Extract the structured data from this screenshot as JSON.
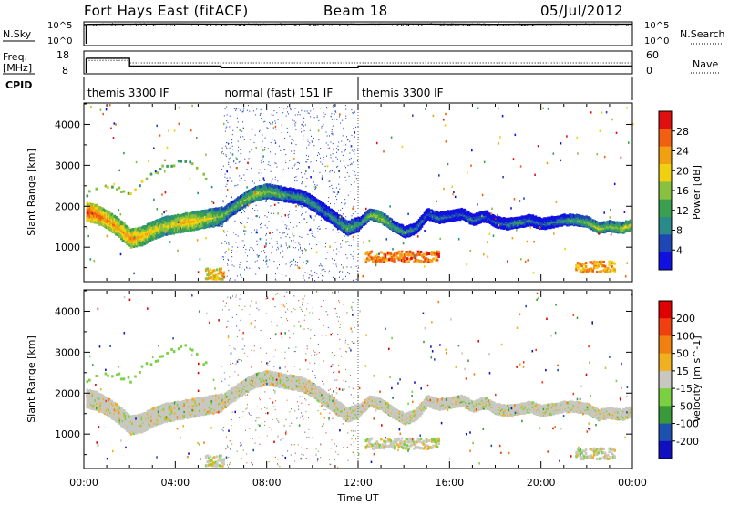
{
  "header": {
    "station": "Fort Hays East (fitACF)",
    "beam": "Beam 18",
    "date": "05/Jul/2012"
  },
  "colors": {
    "power_scale": [
      "#1010e0",
      "#1e46b4",
      "#2a8a8a",
      "#3aa050",
      "#8ac040",
      "#f0d010",
      "#f0a010",
      "#f06010",
      "#e01010"
    ],
    "velocity_scale": [
      "#1010c0",
      "#1e50b0",
      "#3a9a3a",
      "#7ad040",
      "#c8c8c0",
      "#f0b020",
      "#f08010",
      "#f04010",
      "#e00000"
    ]
  },
  "chart_data": [
    {
      "type": "line",
      "panel": "noise",
      "ylabel": "N.Sky",
      "ylabel_right": "N.Search",
      "y_ticks": [
        "10^5",
        "10^0"
      ],
      "y_ticks_right": [
        "10^5",
        "10^0"
      ],
      "xlim": [
        0,
        24
      ],
      "series": [
        {
          "style": "solid",
          "x": [
            0.0,
            0.1,
            0.2,
            2.0,
            4.0,
            6.0,
            8.0,
            10.0,
            12.0,
            14.0,
            16.0,
            18.0,
            20.0,
            22.0,
            23.9,
            24.0
          ],
          "values": [
            4.8,
            4.8,
            4.85,
            4.9,
            4.95,
            4.9,
            4.92,
            4.95,
            4.9,
            4.95,
            4.9,
            4.85,
            4.88,
            4.9,
            4.9,
            4.9
          ]
        }
      ]
    },
    {
      "type": "line",
      "panel": "frequency",
      "ylabel": "Freq. [MHz]",
      "ylabel_right": "Nave",
      "y_ticks": [
        "18",
        "8"
      ],
      "y_ticks_right": [
        "60",
        "0"
      ],
      "xlim": [
        0,
        24
      ],
      "ylim": [
        8,
        18
      ],
      "series": [
        {
          "name": "Freq.",
          "style": "solid",
          "x": [
            0.1,
            2.0,
            2.0,
            6.0,
            6.0,
            12.0,
            12.0,
            24.0
          ],
          "values": [
            15.0,
            15.0,
            11.3,
            11.3,
            10.5,
            10.5,
            11.3,
            11.3
          ]
        },
        {
          "name": "Nave",
          "style": "dotted",
          "x": [
            0.1,
            2.0,
            2.0,
            24.0
          ],
          "values": [
            14.0,
            14.0,
            12.8,
            12.8
          ]
        }
      ]
    },
    {
      "type": "table",
      "panel": "cpid",
      "label": "CPID",
      "segments": [
        {
          "start": 0,
          "end": 6,
          "label": "themis 3300 IF"
        },
        {
          "start": 6,
          "end": 12,
          "label": "normal (fast) 151 IF"
        },
        {
          "start": 12,
          "end": 24,
          "label": "themis 3300 IF"
        }
      ]
    },
    {
      "type": "heatmap",
      "panel": "power",
      "ylabel": "Slant Range [km]",
      "colorbar_label": "Power [dB]",
      "colorbar_ticks": [
        "28",
        "24",
        "20",
        "16",
        "12",
        "8",
        "4"
      ],
      "y_ticks": [
        "4000",
        "3000",
        "2000",
        "1000"
      ],
      "ylim": [
        180,
        4500
      ],
      "xlim": [
        0,
        24
      ],
      "x_ticks": [
        "00:00",
        "04:00",
        "08:00",
        "12:00",
        "16:00",
        "20:00",
        "00:00"
      ],
      "x_tick_values": [
        0,
        4,
        8,
        12,
        16,
        20,
        24
      ],
      "trace_x": [
        0,
        0.5,
        1,
        1.5,
        2,
        2.5,
        3,
        3.5,
        4,
        4.5,
        5,
        5.5,
        6,
        6.5,
        7,
        7.5,
        8,
        8.5,
        9,
        9.5,
        10,
        10.5,
        11,
        11.5,
        12,
        12.5,
        13,
        13.5,
        14,
        14.5,
        15,
        15.5,
        16,
        16.5,
        17,
        17.5,
        18,
        18.5,
        19,
        19.5,
        20,
        20.5,
        21,
        21.5,
        22,
        22.5,
        23,
        23.5,
        24
      ],
      "trace_range": [
        1900,
        1850,
        1700,
        1500,
        1250,
        1300,
        1450,
        1550,
        1600,
        1650,
        1700,
        1750,
        1800,
        2000,
        2200,
        2350,
        2400,
        2350,
        2300,
        2250,
        2100,
        1900,
        1700,
        1500,
        1600,
        1850,
        1750,
        1550,
        1400,
        1500,
        1850,
        1750,
        1800,
        1850,
        1700,
        1800,
        1650,
        1600,
        1650,
        1700,
        1600,
        1650,
        1700,
        1700,
        1650,
        1500,
        1550,
        1500,
        1600
      ],
      "trace_power": [
        28,
        26,
        24,
        22,
        24,
        22,
        20,
        18,
        20,
        22,
        20,
        18,
        16,
        14,
        16,
        18,
        16,
        14,
        12,
        12,
        12,
        10,
        12,
        14,
        12,
        16,
        18,
        14,
        12,
        10,
        8,
        10,
        8,
        8,
        10,
        8,
        8,
        10,
        12,
        10,
        8,
        10,
        12,
        14,
        16,
        18,
        16,
        18,
        20
      ],
      "trace_range_2": [
        2300,
        2400,
        2500,
        2450,
        2350,
        2650,
        2800,
        3000,
        3100,
        3200,
        2900,
        2600
      ],
      "trace_x_2": [
        0,
        0.5,
        1,
        1.5,
        2,
        2.5,
        3,
        3.5,
        4,
        4.5,
        5,
        5.5
      ],
      "low_patches": [
        {
          "x0": 5.3,
          "x1": 6.1,
          "r": 380,
          "power": 20
        },
        {
          "x0": 12.3,
          "x1": 15.5,
          "r": 800,
          "power": 24
        },
        {
          "x0": 21.5,
          "x1": 23.2,
          "r": 550,
          "power": 22
        }
      ],
      "scatter_window": [
        6.0,
        12.0
      ]
    },
    {
      "type": "heatmap",
      "panel": "velocity",
      "ylabel": "Slant Range [km]",
      "xlabel": "Time UT",
      "colorbar_label": "Velocity [m s^-1]",
      "colorbar_ticks": [
        "200",
        "100",
        "50",
        "15",
        "-15",
        "-50",
        "-100",
        "-200"
      ],
      "y_ticks": [
        "4000",
        "3000",
        "2000",
        "1000"
      ],
      "ylim": [
        180,
        4500
      ],
      "xlim": [
        0,
        24
      ],
      "x_ticks": [
        "00:00",
        "04:00",
        "08:00",
        "12:00",
        "16:00",
        "20:00",
        "00:00"
      ],
      "x_tick_values": [
        0,
        4,
        8,
        12,
        16,
        20,
        24
      ]
    }
  ]
}
